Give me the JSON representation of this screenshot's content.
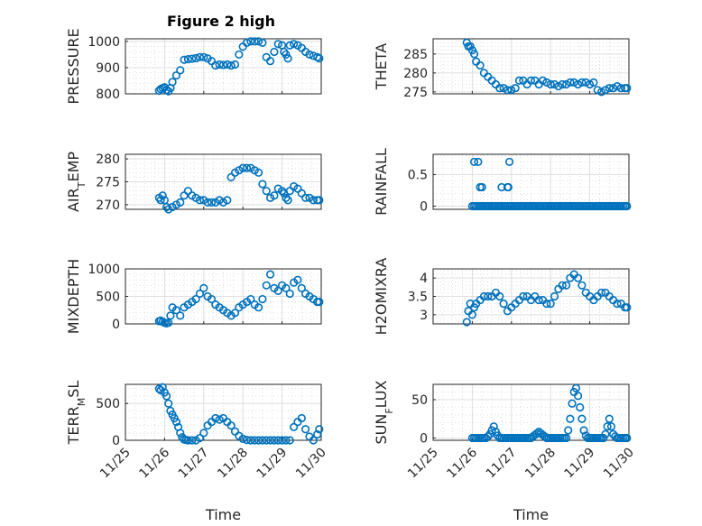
{
  "figure": {
    "title": "Figure 2 high"
  },
  "chart_data": [
    {
      "type": "scatter",
      "id": "pressure",
      "ylabel": "PRESSURE",
      "xlabel": "",
      "ylim": [
        800,
        1010
      ],
      "yticks": [
        800,
        900,
        1000
      ],
      "xlim": [
        0,
        5
      ],
      "xticks": [
        0,
        1,
        2,
        3,
        4,
        5
      ],
      "xticklabels": [
        "",
        "",
        "",
        "",
        "",
        ""
      ],
      "x": [
        0.86,
        0.9,
        0.95,
        1.0,
        1.05,
        1.1,
        1.15,
        1.2,
        1.3,
        1.4,
        1.5,
        1.6,
        1.7,
        1.8,
        1.9,
        2.0,
        2.1,
        2.2,
        2.3,
        2.4,
        2.5,
        2.6,
        2.7,
        2.8,
        2.9,
        3.0,
        3.1,
        3.2,
        3.3,
        3.4,
        3.5,
        3.6,
        3.7,
        3.8,
        3.9,
        4.0,
        4.05,
        4.1,
        4.15,
        4.2,
        4.3,
        4.4,
        4.5,
        4.6,
        4.7,
        4.8,
        4.9,
        4.95
      ],
      "y": [
        812,
        818,
        822,
        825,
        815,
        810,
        822,
        845,
        870,
        890,
        930,
        932,
        934,
        936,
        940,
        940,
        935,
        925,
        908,
        912,
        910,
        912,
        908,
        912,
        950,
        980,
        995,
        1000,
        1000,
        1000,
        995,
        940,
        925,
        960,
        990,
        985,
        960,
        950,
        935,
        985,
        990,
        985,
        975,
        960,
        950,
        945,
        940,
        935
      ]
    },
    {
      "type": "scatter",
      "id": "theta",
      "ylabel": "THETA",
      "xlabel": "",
      "ylim": [
        274.5,
        289
      ],
      "yticks": [
        275,
        280,
        285
      ],
      "xlim": [
        0,
        5
      ],
      "xticks": [
        0,
        1,
        2,
        3,
        4,
        5
      ],
      "xticklabels": [
        "",
        "",
        "",
        "",
        "",
        ""
      ],
      "x": [
        0.86,
        0.9,
        0.95,
        1.0,
        1.05,
        1.1,
        1.2,
        1.3,
        1.4,
        1.5,
        1.6,
        1.7,
        1.8,
        1.9,
        2.0,
        2.1,
        2.2,
        2.3,
        2.4,
        2.5,
        2.6,
        2.7,
        2.8,
        2.9,
        3.0,
        3.1,
        3.2,
        3.3,
        3.4,
        3.5,
        3.6,
        3.7,
        3.8,
        3.9,
        4.0,
        4.1,
        4.2,
        4.3,
        4.4,
        4.5,
        4.6,
        4.7,
        4.8,
        4.9,
        4.95
      ],
      "y": [
        288,
        287,
        287,
        286,
        285,
        283,
        282,
        280,
        279,
        278,
        277,
        276,
        276,
        275.5,
        275.5,
        276,
        278,
        278,
        277,
        278,
        278,
        277,
        278,
        277.5,
        277,
        277,
        276.5,
        277,
        277,
        277.5,
        277.5,
        277,
        277.5,
        277.5,
        277,
        277.5,
        275.5,
        275,
        275.5,
        276,
        276,
        276.5,
        276,
        276,
        276
      ]
    },
    {
      "type": "scatter",
      "id": "air_temp",
      "ylabel": "AIR_TEMP",
      "xlabel": "",
      "ylim": [
        269,
        281
      ],
      "yticks": [
        270,
        275,
        280
      ],
      "xlim": [
        0,
        5
      ],
      "xticks": [
        0,
        1,
        2,
        3,
        4,
        5
      ],
      "xticklabels": [
        "",
        "",
        "",
        "",
        "",
        ""
      ],
      "x": [
        0.86,
        0.9,
        0.95,
        1.0,
        1.05,
        1.1,
        1.2,
        1.3,
        1.4,
        1.5,
        1.6,
        1.7,
        1.8,
        1.9,
        2.0,
        2.1,
        2.2,
        2.3,
        2.4,
        2.5,
        2.6,
        2.7,
        2.8,
        2.9,
        3.0,
        3.1,
        3.2,
        3.3,
        3.4,
        3.5,
        3.6,
        3.7,
        3.8,
        3.9,
        4.0,
        4.05,
        4.1,
        4.15,
        4.2,
        4.3,
        4.4,
        4.5,
        4.6,
        4.7,
        4.8,
        4.9,
        4.95
      ],
      "y": [
        271.5,
        271,
        272,
        271,
        269.5,
        269,
        269.5,
        270,
        270.5,
        272,
        273,
        272,
        271.5,
        271,
        271,
        270.5,
        270.5,
        270.5,
        271,
        270.5,
        271,
        276,
        277,
        277.5,
        278,
        278,
        278,
        277.5,
        277,
        274.5,
        273,
        271.5,
        272,
        273.5,
        273,
        272.5,
        271.5,
        271,
        273,
        274,
        273.5,
        272.5,
        271.5,
        271.5,
        271,
        271,
        271
      ]
    },
    {
      "type": "scatter",
      "id": "rainfall",
      "ylabel": "RAINFALL",
      "xlabel": "",
      "ylim": [
        -0.05,
        0.82
      ],
      "yticks": [
        0,
        0.5
      ],
      "xlim": [
        0,
        5
      ],
      "xticks": [
        0,
        1,
        2,
        3,
        4,
        5
      ],
      "xticklabels": [
        "",
        "",
        "",
        "",
        "",
        ""
      ],
      "x": [
        1.0,
        1.05,
        1.1,
        1.15,
        1.2,
        1.25,
        1.3,
        1.35,
        1.4,
        1.45,
        1.5,
        1.55,
        1.6,
        1.65,
        1.7,
        1.75,
        1.8,
        1.85,
        1.9,
        1.95,
        2.0,
        2.05,
        2.1,
        2.15,
        2.2,
        2.25,
        2.3,
        2.35,
        2.4,
        2.45,
        2.5,
        2.55,
        2.6,
        2.65,
        2.7,
        2.75,
        2.8,
        2.85,
        2.9,
        2.95,
        3.0,
        3.05,
        3.1,
        3.15,
        3.2,
        3.25,
        3.3,
        3.35,
        3.4,
        3.45,
        3.5,
        3.55,
        3.6,
        3.65,
        3.7,
        3.75,
        3.8,
        3.85,
        3.9,
        3.95,
        4.0,
        4.05,
        4.1,
        4.15,
        4.2,
        4.25,
        4.3,
        4.35,
        4.4,
        4.45,
        4.5,
        4.55,
        4.6,
        4.65,
        4.7,
        4.75,
        4.8,
        4.85,
        4.9,
        4.95,
        1.05,
        1.15,
        1.2,
        1.25,
        1.75,
        1.9,
        1.92,
        1.95
      ],
      "y": [
        0,
        0,
        0,
        0,
        0,
        0,
        0,
        0,
        0,
        0,
        0,
        0,
        0,
        0,
        0,
        0,
        0,
        0,
        0,
        0,
        0,
        0,
        0,
        0,
        0,
        0,
        0,
        0,
        0,
        0,
        0,
        0,
        0,
        0,
        0,
        0,
        0,
        0,
        0,
        0,
        0,
        0,
        0,
        0,
        0,
        0,
        0,
        0,
        0,
        0,
        0,
        0,
        0,
        0,
        0,
        0,
        0,
        0,
        0,
        0,
        0,
        0,
        0,
        0,
        0,
        0,
        0,
        0,
        0,
        0,
        0,
        0,
        0,
        0,
        0,
        0,
        0,
        0,
        0,
        0,
        0.7,
        0.7,
        0.3,
        0.3,
        0.3,
        0.3,
        0.3,
        0.7
      ]
    },
    {
      "type": "scatter",
      "id": "mixdepth",
      "ylabel": "MIXDEPTH",
      "xlabel": "",
      "ylim": [
        0,
        1000
      ],
      "yticks": [
        0,
        500,
        1000
      ],
      "xlim": [
        0,
        5
      ],
      "xticks": [
        0,
        1,
        2,
        3,
        4,
        5
      ],
      "xticklabels": [
        "",
        "",
        "",
        "",
        "",
        ""
      ],
      "x": [
        0.86,
        0.9,
        0.95,
        1.0,
        1.05,
        1.1,
        1.15,
        1.2,
        1.3,
        1.4,
        1.5,
        1.6,
        1.7,
        1.8,
        1.9,
        2.0,
        2.1,
        2.2,
        2.3,
        2.4,
        2.5,
        2.6,
        2.7,
        2.8,
        2.9,
        3.0,
        3.1,
        3.2,
        3.3,
        3.4,
        3.5,
        3.6,
        3.7,
        3.8,
        3.9,
        4.0,
        4.1,
        4.2,
        4.3,
        4.4,
        4.5,
        4.6,
        4.7,
        4.8,
        4.9,
        4.95
      ],
      "y": [
        50,
        60,
        40,
        20,
        10,
        20,
        150,
        300,
        250,
        150,
        300,
        350,
        400,
        450,
        550,
        650,
        500,
        450,
        350,
        300,
        250,
        200,
        150,
        200,
        300,
        350,
        400,
        450,
        350,
        300,
        450,
        700,
        900,
        650,
        600,
        700,
        650,
        550,
        750,
        800,
        650,
        550,
        500,
        450,
        400,
        400
      ]
    },
    {
      "type": "scatter",
      "id": "h2omixra",
      "ylabel": "H2OMIXRA",
      "xlabel": "",
      "ylim": [
        2.75,
        4.25
      ],
      "yticks": [
        3,
        3.5,
        4
      ],
      "xlim": [
        0,
        5
      ],
      "xticks": [
        0,
        1,
        2,
        3,
        4,
        5
      ],
      "xticklabels": [
        "",
        "",
        "",
        "",
        "",
        ""
      ],
      "x": [
        0.86,
        0.9,
        0.95,
        1.0,
        1.05,
        1.1,
        1.2,
        1.3,
        1.4,
        1.5,
        1.6,
        1.7,
        1.8,
        1.9,
        2.0,
        2.1,
        2.2,
        2.3,
        2.4,
        2.5,
        2.6,
        2.7,
        2.8,
        2.9,
        3.0,
        3.1,
        3.2,
        3.3,
        3.4,
        3.5,
        3.6,
        3.7,
        3.8,
        3.9,
        4.0,
        4.1,
        4.2,
        4.3,
        4.4,
        4.5,
        4.6,
        4.7,
        4.8,
        4.9,
        4.95
      ],
      "y": [
        2.8,
        3.1,
        3.3,
        3.0,
        3.2,
        3.3,
        3.4,
        3.5,
        3.5,
        3.5,
        3.6,
        3.5,
        3.3,
        3.1,
        3.2,
        3.3,
        3.4,
        3.5,
        3.5,
        3.4,
        3.5,
        3.4,
        3.4,
        3.3,
        3.3,
        3.5,
        3.7,
        3.8,
        3.8,
        4.0,
        4.1,
        4.0,
        3.8,
        3.6,
        3.5,
        3.4,
        3.5,
        3.6,
        3.6,
        3.5,
        3.4,
        3.3,
        3.3,
        3.2,
        3.2
      ]
    },
    {
      "type": "scatter",
      "id": "terr_msl",
      "ylabel": "TERR_MSL",
      "xlabel": "Time",
      "ylim": [
        0,
        760
      ],
      "yticks": [
        0,
        500
      ],
      "xlim": [
        0,
        5
      ],
      "xticks": [
        0,
        1,
        2,
        3,
        4,
        5
      ],
      "xticklabels": [
        "11/25",
        "11/26",
        "11/27",
        "11/28",
        "11/29",
        "11/30"
      ],
      "x": [
        0.86,
        0.9,
        0.95,
        1.0,
        1.05,
        1.1,
        1.15,
        1.2,
        1.25,
        1.3,
        1.35,
        1.4,
        1.45,
        1.5,
        1.55,
        1.6,
        1.7,
        1.8,
        1.9,
        2.0,
        2.1,
        2.2,
        2.3,
        2.4,
        2.5,
        2.6,
        2.7,
        2.8,
        2.9,
        3.0,
        3.1,
        3.2,
        3.3,
        3.4,
        3.5,
        3.6,
        3.7,
        3.8,
        3.9,
        4.0,
        4.1,
        4.2,
        4.3,
        4.4,
        4.5,
        4.6,
        4.7,
        4.8,
        4.9,
        4.95
      ],
      "y": [
        700,
        680,
        720,
        650,
        600,
        500,
        400,
        350,
        300,
        250,
        180,
        100,
        40,
        10,
        5,
        0,
        0,
        0,
        30,
        100,
        200,
        250,
        300,
        280,
        300,
        250,
        200,
        120,
        60,
        20,
        5,
        0,
        0,
        0,
        0,
        0,
        0,
        0,
        0,
        0,
        0,
        0,
        180,
        250,
        300,
        150,
        50,
        0,
        80,
        150
      ]
    },
    {
      "type": "scatter",
      "id": "sun_flux",
      "ylabel": "SUN_FLUX",
      "xlabel": "Time",
      "ylim": [
        -3,
        70
      ],
      "yticks": [
        0,
        50
      ],
      "xlim": [
        0,
        5
      ],
      "xticks": [
        0,
        1,
        2,
        3,
        4,
        5
      ],
      "xticklabels": [
        "11/25",
        "11/26",
        "11/27",
        "11/28",
        "11/29",
        "11/30"
      ],
      "x": [
        1.0,
        1.05,
        1.1,
        1.15,
        1.2,
        1.25,
        1.3,
        1.35,
        1.4,
        1.45,
        1.5,
        1.55,
        1.6,
        1.65,
        1.7,
        1.75,
        1.8,
        1.85,
        1.9,
        1.95,
        2.0,
        2.05,
        2.1,
        2.15,
        2.2,
        2.25,
        2.3,
        2.35,
        2.4,
        2.45,
        2.5,
        2.55,
        2.6,
        2.65,
        2.7,
        2.75,
        2.8,
        2.85,
        2.9,
        2.95,
        3.0,
        3.05,
        3.1,
        3.15,
        3.2,
        3.25,
        3.3,
        3.35,
        3.4,
        3.45,
        3.5,
        3.55,
        3.6,
        3.65,
        3.7,
        3.75,
        3.8,
        3.85,
        3.9,
        3.95,
        4.0,
        4.05,
        4.1,
        4.15,
        4.2,
        4.25,
        4.3,
        4.35,
        4.4,
        4.45,
        4.5,
        4.55,
        4.6,
        4.65,
        4.7,
        4.75,
        4.8,
        4.85,
        4.9,
        4.95
      ],
      "y": [
        0,
        0,
        0,
        0,
        0,
        0,
        0,
        0,
        2,
        5,
        10,
        15,
        8,
        3,
        0,
        0,
        0,
        0,
        0,
        0,
        0,
        0,
        0,
        0,
        0,
        0,
        0,
        0,
        0,
        0,
        0,
        2,
        4,
        6,
        8,
        6,
        4,
        2,
        0,
        0,
        0,
        0,
        0,
        0,
        0,
        0,
        0,
        0,
        0,
        10,
        25,
        45,
        60,
        65,
        55,
        40,
        25,
        10,
        3,
        0,
        0,
        0,
        0,
        0,
        0,
        0,
        0,
        0,
        5,
        15,
        25,
        15,
        5,
        2,
        0,
        0,
        0,
        0,
        0,
        0
      ]
    }
  ]
}
